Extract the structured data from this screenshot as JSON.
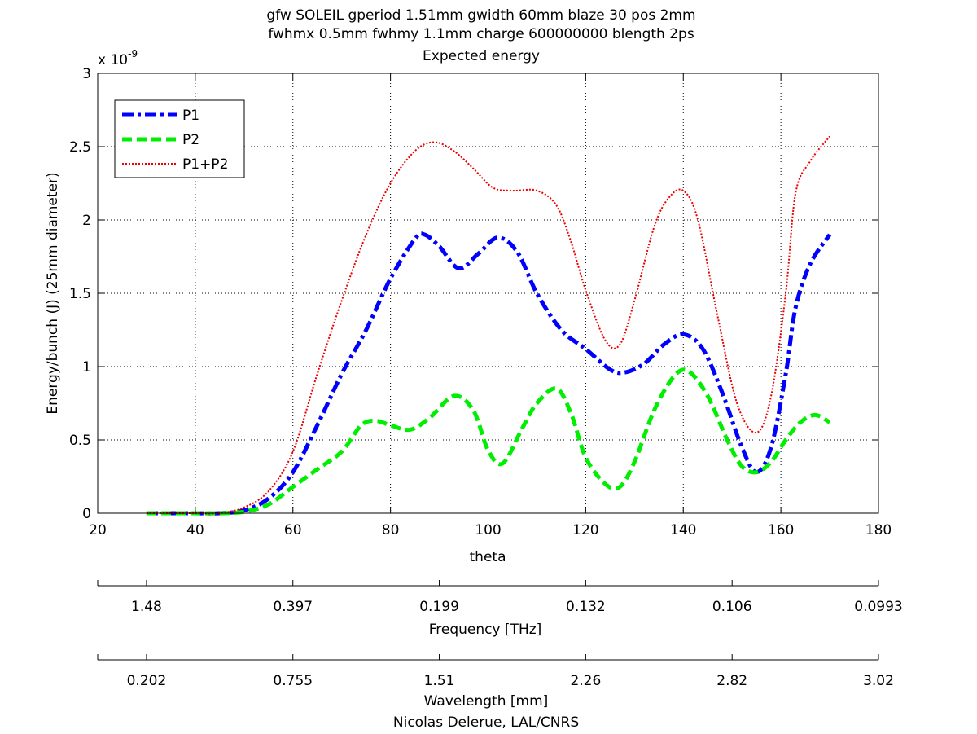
{
  "chart_data": {
    "type": "line",
    "title_lines": [
      "gfw SOLEIL gperiod 1.51mm gwidth 60mm blaze 30 pos 2mm",
      "fwhmx 0.5mm fwhmy 1.1mm charge 600000000 blength 2ps",
      "Expected energy"
    ],
    "xlabel": "theta",
    "ylabel": "Energy/bunch (J) (25mm diameter)",
    "y_exponent_label": "x 10",
    "y_exponent_power": "-9",
    "xlim": [
      20,
      180
    ],
    "ylim": [
      0,
      3
    ],
    "x_ticks": [
      "20",
      "40",
      "60",
      "80",
      "100",
      "120",
      "140",
      "160",
      "180"
    ],
    "y_ticks": [
      "0",
      "0.5",
      "1",
      "1.5",
      "2",
      "2.5",
      "3"
    ],
    "grid": true,
    "legend_position": "top-left",
    "series": [
      {
        "name": "P1",
        "color": "#0000ff",
        "style": "dash-dot",
        "x": [
          30,
          35,
          40,
          45,
          50,
          55,
          60,
          65,
          70,
          75,
          80,
          85,
          87,
          90,
          94,
          98,
          102,
          106,
          110,
          115,
          120,
          125,
          128,
          132,
          136,
          140,
          144,
          148,
          152,
          155,
          158,
          161,
          163,
          166,
          170
        ],
        "y": [
          0,
          0,
          0,
          0,
          0.02,
          0.1,
          0.28,
          0.6,
          0.95,
          1.25,
          1.6,
          1.87,
          1.9,
          1.82,
          1.67,
          1.77,
          1.88,
          1.78,
          1.5,
          1.25,
          1.12,
          0.98,
          0.96,
          1.02,
          1.15,
          1.22,
          1.12,
          0.82,
          0.45,
          0.28,
          0.45,
          0.95,
          1.4,
          1.7,
          1.9
        ]
      },
      {
        "name": "P2",
        "color": "#00ee00",
        "style": "dashed",
        "x": [
          30,
          35,
          40,
          45,
          50,
          55,
          60,
          65,
          70,
          74,
          77,
          80,
          84,
          88,
          93,
          97,
          100,
          103,
          107,
          110,
          114,
          117,
          120,
          124,
          127,
          130,
          134,
          138,
          141,
          145,
          149,
          152,
          155,
          158,
          161,
          164,
          167,
          170
        ],
        "y": [
          0,
          0,
          0,
          0,
          0.01,
          0.06,
          0.18,
          0.3,
          0.42,
          0.6,
          0.63,
          0.6,
          0.57,
          0.65,
          0.8,
          0.7,
          0.43,
          0.34,
          0.58,
          0.75,
          0.85,
          0.68,
          0.38,
          0.2,
          0.18,
          0.35,
          0.7,
          0.93,
          0.97,
          0.8,
          0.5,
          0.32,
          0.28,
          0.35,
          0.5,
          0.62,
          0.67,
          0.62
        ]
      },
      {
        "name": "P1+P2",
        "color": "#ee0000",
        "style": "dotted",
        "x": [
          30,
          35,
          40,
          45,
          50,
          55,
          60,
          65,
          70,
          75,
          80,
          85,
          89,
          93,
          97,
          101,
          105,
          110,
          114,
          117,
          120,
          124,
          127,
          130,
          134,
          137,
          140,
          143,
          147,
          151,
          155,
          158,
          161,
          163,
          166,
          170
        ],
        "y": [
          0,
          0,
          0,
          0,
          0.04,
          0.15,
          0.42,
          0.95,
          1.45,
          1.9,
          2.25,
          2.47,
          2.53,
          2.47,
          2.35,
          2.22,
          2.2,
          2.2,
          2.1,
          1.85,
          1.52,
          1.18,
          1.15,
          1.45,
          1.95,
          2.15,
          2.2,
          2.0,
          1.35,
          0.75,
          0.55,
          0.8,
          1.5,
          2.18,
          2.4,
          2.57
        ]
      }
    ],
    "secondary_axes": [
      {
        "label": "Frequency [THz]",
        "ticks": [
          "1.48",
          "0.397",
          "0.199",
          "0.132",
          "0.106",
          "0.0993"
        ]
      },
      {
        "label": "Wavelength [mm]",
        "ticks": [
          "0.202",
          "0.755",
          "1.51",
          "2.26",
          "2.82",
          "3.02"
        ]
      }
    ],
    "credit": "Nicolas Delerue, LAL/CNRS"
  }
}
